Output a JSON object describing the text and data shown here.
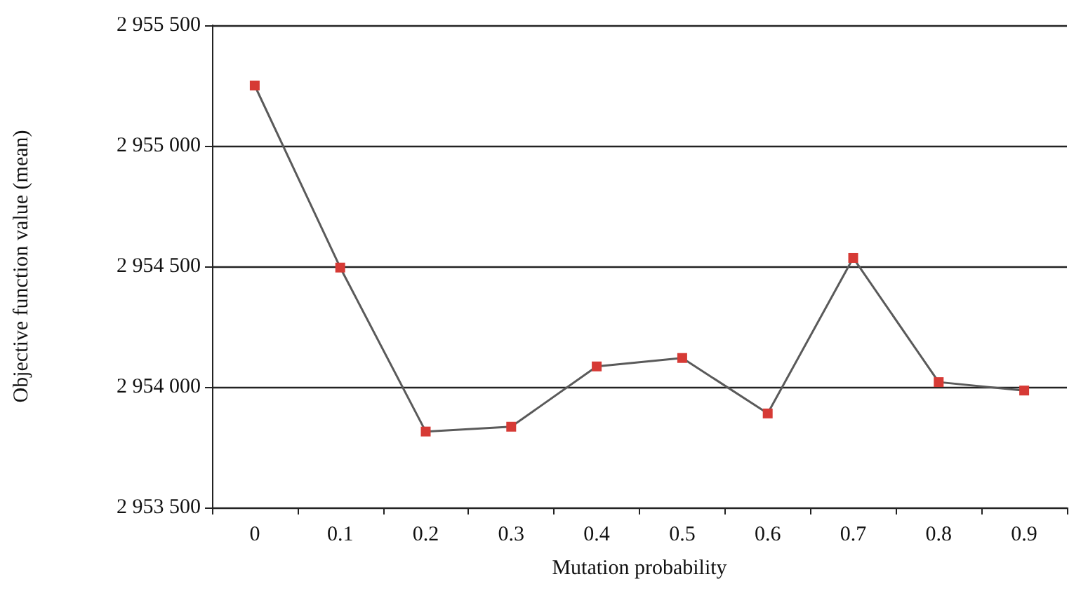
{
  "chart_data": {
    "type": "line",
    "xlabel": "Mutation probability",
    "ylabel": "Objective function value (mean)",
    "categories": [
      "0",
      "0.1",
      "0.2",
      "0.3",
      "0.4",
      "0.5",
      "0.6",
      "0.7",
      "0.8",
      "0.9"
    ],
    "series": [
      {
        "color": "#5a5a5a",
        "colors": [
          "#d63a35",
          "#d63a35",
          "#d63a35",
          "#d63a35",
          "#d63a35",
          "#d63a35",
          "#d63a35",
          "#d63a35",
          "#d63a35",
          "#d63a35"
        ],
        "values": [
          2955250,
          2954495,
          2953815,
          2953835,
          2954085,
          2954120,
          2953890,
          2954535,
          2954020,
          2953985
        ]
      }
    ],
    "ylim": [
      2953500,
      2955500
    ],
    "yticks": [
      {
        "value": 2953500,
        "label": "2 953 500"
      },
      {
        "value": 2954000,
        "label": "2 954 000"
      },
      {
        "value": 2954500,
        "label": "2 954 500"
      },
      {
        "value": 2955000,
        "label": "2 955 000"
      },
      {
        "value": 2955500,
        "label": "2 955 500"
      }
    ],
    "grid": "y",
    "marker": "square",
    "line_style": "solid"
  }
}
